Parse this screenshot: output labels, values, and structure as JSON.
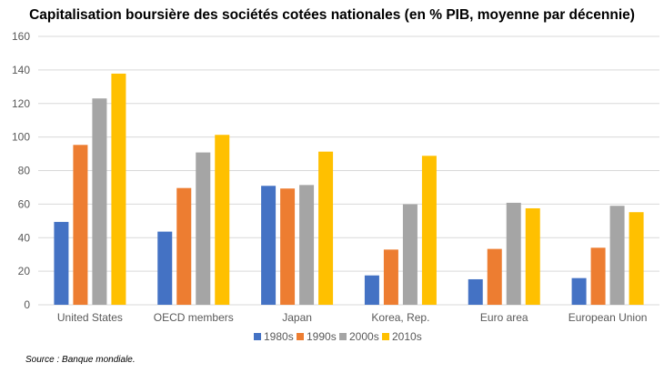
{
  "chart_data": {
    "type": "bar",
    "title": "Capitalisation boursière des sociétés cotées nationales (en % PIB, moyenne par décennie)",
    "categories": [
      "United States",
      "OECD members",
      "Japan",
      "Korea, Rep.",
      "Euro area",
      "European Union"
    ],
    "series": [
      {
        "name": "1980s",
        "color": "#4472C4",
        "values": [
          49.4,
          43.6,
          70.9,
          17.5,
          15.2,
          15.9
        ]
      },
      {
        "name": "1990s",
        "color": "#ED7D31",
        "values": [
          95.3,
          69.6,
          69.3,
          32.9,
          33.3,
          34.0
        ]
      },
      {
        "name": "2000s",
        "color": "#A5A5A5",
        "values": [
          123.0,
          90.8,
          71.4,
          59.9,
          60.8,
          59.0
        ]
      },
      {
        "name": "2010s",
        "color": "#FFC000",
        "values": [
          137.8,
          101.3,
          91.3,
          88.8,
          57.5,
          55.2
        ]
      }
    ],
    "ylim": [
      0,
      160
    ],
    "yticks": [
      "0",
      "20",
      "40",
      "60",
      "80",
      "100",
      "120",
      "140",
      "160"
    ],
    "grid": true,
    "legend": "bottom",
    "xlabel": "",
    "ylabel": ""
  },
  "source": "Source : Banque mondiale."
}
